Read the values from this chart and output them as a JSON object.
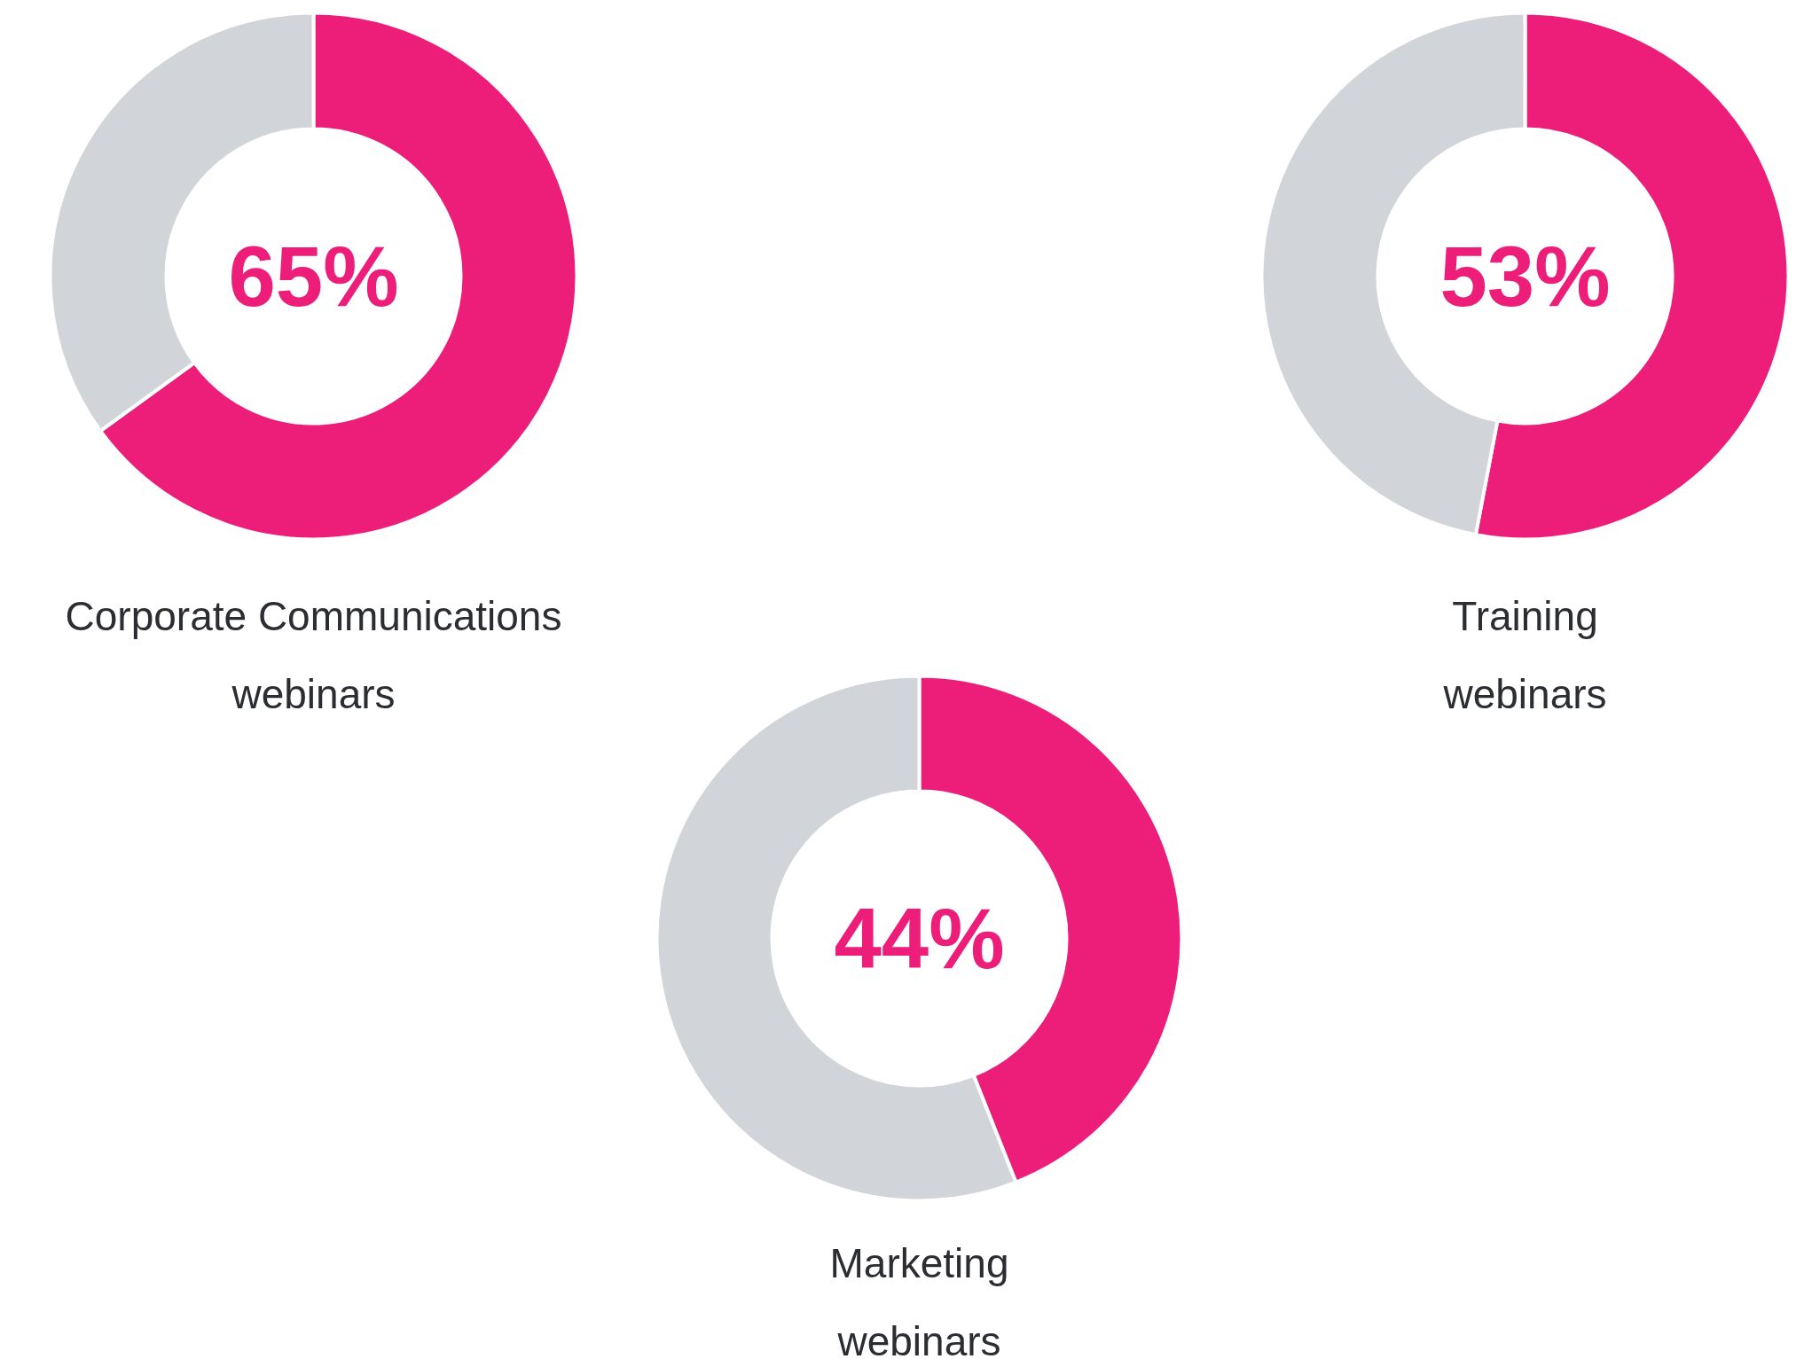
{
  "chart_data": [
    {
      "type": "donut",
      "title": "Corporate Communications\nwebinars",
      "categories": [
        null,
        null
      ],
      "values": [
        65,
        35
      ],
      "colors": [
        "#ed1e79",
        "#d1d4d8"
      ],
      "annotations": [
        "65%"
      ]
    },
    {
      "type": "donut",
      "title": "Training\nwebinars",
      "categories": [
        null,
        null
      ],
      "values": [
        53,
        47
      ],
      "colors": [
        "#ed1e79",
        "#d1d4d8"
      ],
      "annotations": [
        "53%"
      ]
    },
    {
      "type": "donut",
      "title": "Marketing\nwebinars",
      "categories": [
        null,
        null
      ],
      "values": [
        44,
        56
      ],
      "colors": [
        "#ed1e79",
        "#d1d4d8"
      ],
      "annotations": [
        "44%"
      ]
    }
  ]
}
